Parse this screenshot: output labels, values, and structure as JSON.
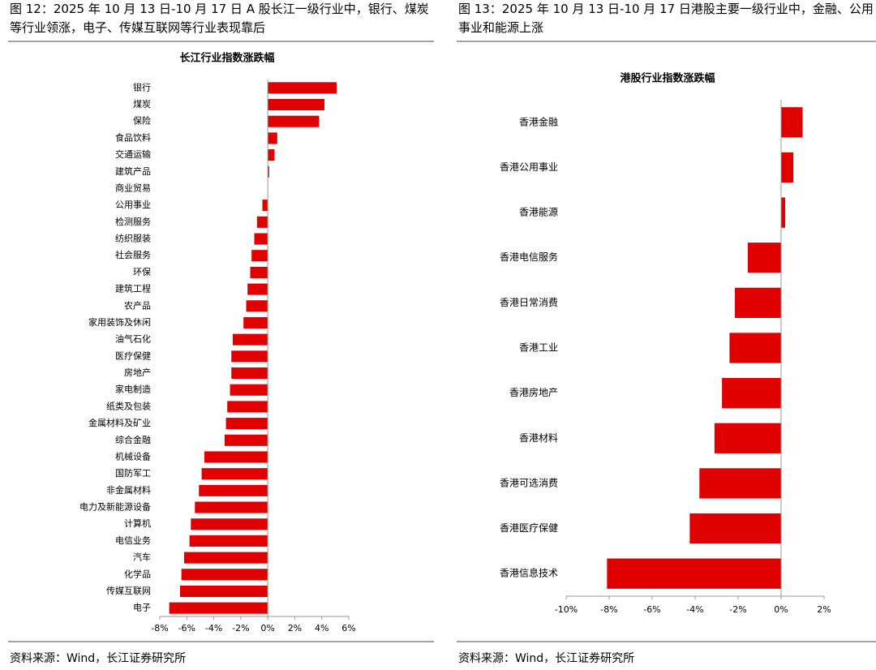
{
  "chart_data": [
    {
      "type": "barh",
      "caption": "图 12：2025 年 10 月 13 日-10 月 17 日 A 股长江一级行业中，银行、煤炭等行业领涨，电子、传媒互联网等行业表现靠后",
      "title": "长江行业指数涨跌幅",
      "source": "资料来源：Wind，长江证券研究所",
      "color": "#e00000",
      "categories": [
        "银行",
        "煤炭",
        "保险",
        "食品饮料",
        "交通运输",
        "建筑产品",
        "商业贸易",
        "公用事业",
        "检测服务",
        "纺织服装",
        "社会服务",
        "环保",
        "建筑工程",
        "农产品",
        "家用装饰及休闲",
        "油气石化",
        "医疗保健",
        "房地产",
        "家电制造",
        "纸类及包装",
        "金属材料及矿业",
        "综合金融",
        "机械设备",
        "国防军工",
        "非金属材料",
        "电力及新能源设备",
        "计算机",
        "电信业务",
        "汽车",
        "化学品",
        "传媒互联网",
        "电子"
      ],
      "values": [
        5.1,
        4.2,
        3.8,
        0.7,
        0.5,
        0.1,
        0.02,
        -0.4,
        -0.8,
        -1.0,
        -1.2,
        -1.3,
        -1.5,
        -1.6,
        -1.8,
        -2.6,
        -2.7,
        -2.7,
        -2.8,
        -3.0,
        -3.1,
        -3.2,
        -4.7,
        -4.9,
        -5.1,
        -5.4,
        -5.7,
        -5.8,
        -6.2,
        -6.4,
        -6.5,
        -7.3
      ],
      "xlim": [
        -8,
        6
      ],
      "xticks": [
        {
          "value": -8,
          "label": "-8%"
        },
        {
          "value": -6,
          "label": "-6%"
        },
        {
          "value": -4,
          "label": "-4%"
        },
        {
          "value": -2,
          "label": "-2%"
        },
        {
          "value": 0,
          "label": "0%"
        },
        {
          "value": 2,
          "label": "2%"
        },
        {
          "value": 4,
          "label": "4%"
        },
        {
          "value": 6,
          "label": "6%"
        }
      ]
    },
    {
      "type": "barh",
      "caption": "图 13：2025 年 10 月 13 日-10 月 17 日港股主要一级行业中，金融、公用事业和能源上涨",
      "title": "港股行业指数涨跌幅",
      "source": "资料来源：Wind，长江证券研究所",
      "color": "#e00000",
      "categories": [
        "香港金融",
        "香港公用事业",
        "香港能源",
        "香港电信服务",
        "香港日常消费",
        "香港工业",
        "香港房地产",
        "香港材料",
        "香港可选消费",
        "香港医疗保健",
        "香港信息技术"
      ],
      "values": [
        1.0,
        0.57,
        0.19,
        -1.55,
        -2.15,
        -2.4,
        -2.75,
        -3.1,
        -3.8,
        -4.25,
        -8.1
      ],
      "xlim": [
        -10,
        2
      ],
      "xticks": [
        {
          "value": -10,
          "label": "-10%"
        },
        {
          "value": -8,
          "label": "-8%"
        },
        {
          "value": -6,
          "label": "-6%"
        },
        {
          "value": -4,
          "label": "-4%"
        },
        {
          "value": -2,
          "label": "-2%"
        },
        {
          "value": 0,
          "label": "0%"
        },
        {
          "value": 2,
          "label": "2%"
        }
      ]
    }
  ]
}
